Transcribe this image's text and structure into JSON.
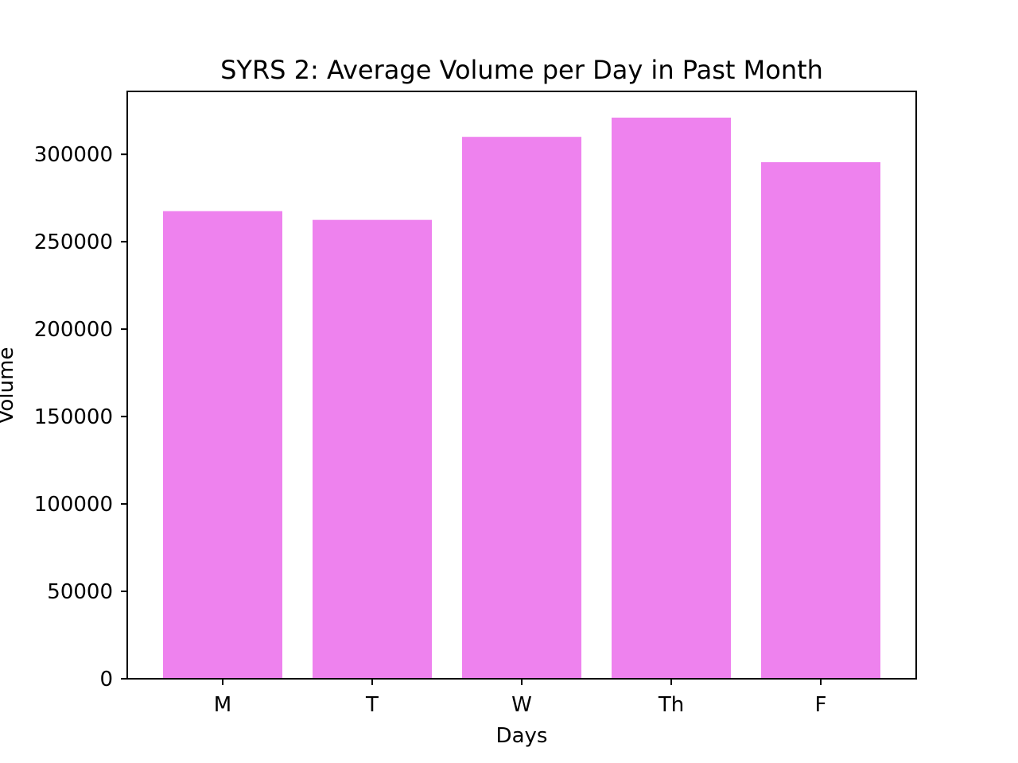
{
  "chart_data": {
    "type": "bar",
    "title": "SYRS 2: Average Volume per Day in Past Month",
    "xlabel": "Days",
    "ylabel": "Volume",
    "categories": [
      "M",
      "T",
      "W",
      "Th",
      "F"
    ],
    "values": [
      267500,
      262500,
      310000,
      321000,
      295500
    ],
    "ylim": [
      0,
      336000
    ],
    "yticks": [
      0,
      50000,
      100000,
      150000,
      200000,
      250000,
      300000
    ],
    "ytick_labels": [
      "0",
      "50000",
      "100000",
      "150000",
      "200000",
      "250000",
      "300000"
    ],
    "bar_color": "#ee82ee",
    "grid": false,
    "legend": "none"
  }
}
